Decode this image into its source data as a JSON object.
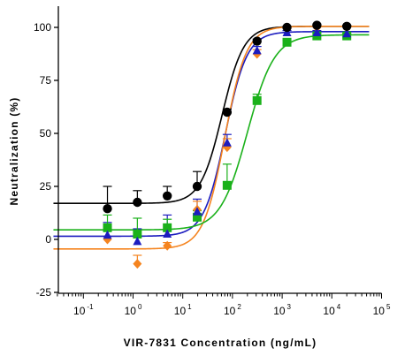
{
  "chart_data": {
    "type": "scatter",
    "title": "",
    "xlabel": "VIR-7831 Concentration (ng/mL)",
    "ylabel": "Neutralization (%)",
    "xscale": "log",
    "xlim": [
      0.025,
      100000
    ],
    "ylim": [
      -25,
      110
    ],
    "grid": false,
    "legend": "none",
    "y_ticks": [
      "-25",
      "0",
      "25",
      "50",
      "75",
      "100"
    ],
    "x_ticks": [
      {
        "base": "10",
        "exp": "-1"
      },
      {
        "base": "10",
        "exp": "0"
      },
      {
        "base": "10",
        "exp": "1"
      },
      {
        "base": "10",
        "exp": "2"
      },
      {
        "base": "10",
        "exp": "3"
      },
      {
        "base": "10",
        "exp": "4"
      },
      {
        "base": "10",
        "exp": "5"
      }
    ],
    "x": [
      0.305,
      1.22,
      4.88,
      19.5,
      78.1,
      312.5,
      1250,
      5000,
      20000
    ],
    "series": [
      {
        "color": "#000000",
        "marker": "circle",
        "values": [
          14.5,
          17.5,
          20.5,
          25,
          60,
          93.5,
          100,
          101,
          100.5
        ],
        "error": [
          10.5,
          5.5,
          4.5,
          7,
          1.5,
          1,
          0.5,
          0.5,
          0.5
        ],
        "fit": {
          "bottom": 17,
          "top": 100.5,
          "ec50": 62,
          "hill": 2.0
        }
      },
      {
        "color": "#1c1cbf",
        "marker": "triangle",
        "values": [
          2,
          -1,
          2.5,
          13,
          45.5,
          89,
          97.5,
          97.5,
          97
        ],
        "error": [
          6,
          6,
          9,
          6,
          4,
          2,
          1,
          1,
          1
        ],
        "fit": {
          "bottom": 1.5,
          "top": 98,
          "ec50": 72,
          "hill": 2.0
        }
      },
      {
        "color": "#f5841f",
        "marker": "diamond",
        "values": [
          0,
          -11.5,
          -3,
          14,
          43.5,
          87.5,
          99.5,
          100,
          100
        ],
        "error": [
          6,
          4,
          1.5,
          4,
          4,
          2,
          0.5,
          0.5,
          0.5
        ],
        "fit": {
          "bottom": -4.5,
          "top": 100.5,
          "ec50": 70,
          "hill": 2.0
        }
      },
      {
        "color": "#1ab11a",
        "marker": "square",
        "values": [
          5.5,
          2.5,
          5.5,
          10.5,
          25.5,
          65.5,
          93,
          96,
          96
        ],
        "error": [
          6,
          7.5,
          4,
          3,
          10,
          3,
          1,
          1,
          1
        ],
        "fit": {
          "bottom": 4.5,
          "top": 96.5,
          "ec50": 200,
          "hill": 1.6
        }
      }
    ]
  }
}
